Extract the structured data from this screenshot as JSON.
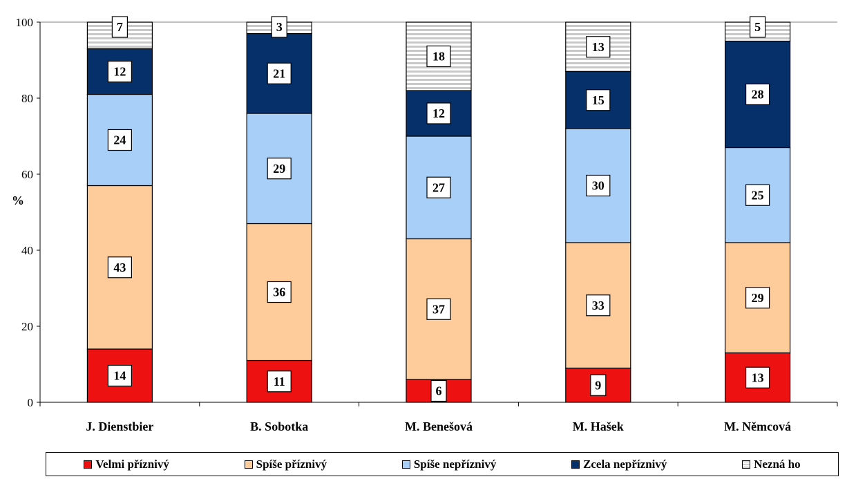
{
  "chart_data": {
    "type": "bar",
    "stacked": true,
    "ylabel": "%",
    "ylim": [
      0,
      100
    ],
    "yticks": [
      0,
      20,
      40,
      60,
      80,
      100
    ],
    "grid": false,
    "legend_position": "bottom",
    "categories": [
      "J. Dienstbier",
      "B. Sobotka",
      "M. Benešová",
      "M. Hašek",
      "M. Němcová"
    ],
    "series": [
      {
        "name": "Velmi příznivý",
        "color": "#ee1111",
        "values": [
          14,
          11,
          6,
          9,
          13
        ]
      },
      {
        "name": "Spíše příznivý",
        "color": "#fecb9a",
        "values": [
          43,
          36,
          37,
          33,
          29
        ]
      },
      {
        "name": "Spíše nepříznivý",
        "color": "#a8cff8",
        "values": [
          24,
          29,
          27,
          30,
          25
        ]
      },
      {
        "name": "Zcela nepříznivý",
        "color": "#05306a",
        "values": [
          12,
          21,
          12,
          15,
          28
        ]
      },
      {
        "name": "Nezná ho",
        "color": "#cfcfcf",
        "pattern": "striped",
        "values": [
          7,
          3,
          18,
          13,
          5
        ]
      }
    ]
  }
}
